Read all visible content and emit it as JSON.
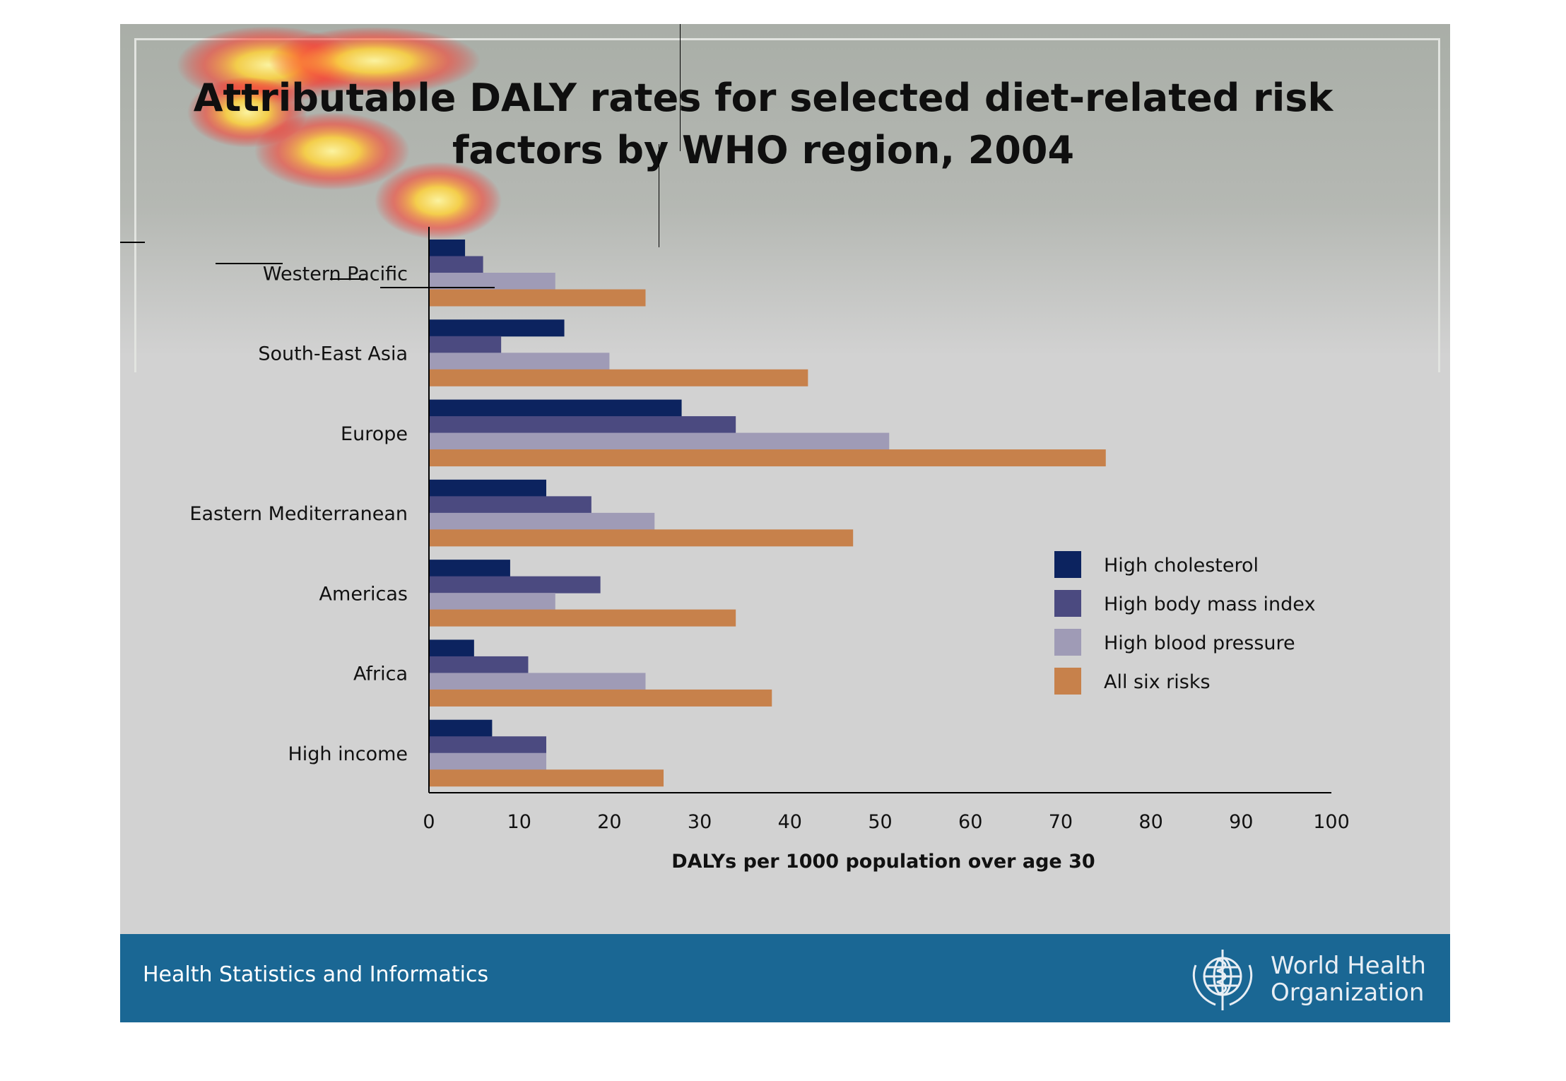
{
  "slide": {
    "title": "Attributable DALY rates for selected diet-related risk factors by WHO region, 2004",
    "footer_text": "Health Statistics and Informatics",
    "org_name": "World Health Organization",
    "footer_color": "#1a6794"
  },
  "chart_data": {
    "type": "bar",
    "orientation": "horizontal",
    "title": "Attributable DALY rates for selected diet-related risk factors by WHO region, 2004",
    "xlabel": "DALYs per 1000 population over age 30",
    "ylabel": "",
    "xlim": [
      0,
      100
    ],
    "x_ticks": [
      "0",
      "10",
      "20",
      "30",
      "40",
      "50",
      "60",
      "70",
      "80",
      "90",
      "100"
    ],
    "categories": [
      "Western Pacific",
      "South-East Asia",
      "Europe",
      "Eastern Mediterranean",
      "Americas",
      "Africa",
      "High income"
    ],
    "series": [
      {
        "name": "High cholesterol",
        "color": "#0c235f",
        "values": [
          4,
          15,
          28,
          13,
          9,
          5,
          7
        ]
      },
      {
        "name": "High body mass index",
        "color": "#4b4a80",
        "values": [
          6,
          8,
          34,
          18,
          19,
          11,
          13
        ]
      },
      {
        "name": "High blood pressure",
        "color": "#9f9bb6",
        "values": [
          14,
          20,
          51,
          25,
          14,
          24,
          13
        ]
      },
      {
        "name": "All six risks",
        "color": "#c7814b",
        "values": [
          24,
          42,
          75,
          47,
          34,
          38,
          26
        ]
      }
    ],
    "legend_position": "right",
    "grid": false
  }
}
